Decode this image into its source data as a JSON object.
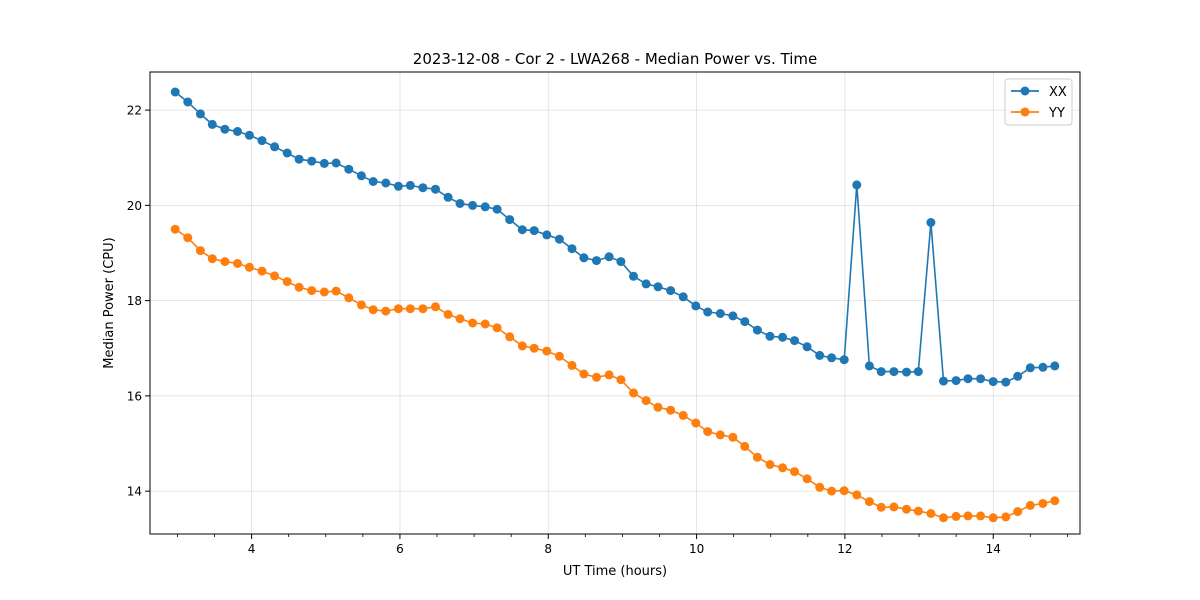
{
  "chart_data": {
    "type": "line",
    "title": "2023-12-08 - Cor 2 - LWA268 - Median Power vs. Time",
    "xlabel": "UT Time (hours)",
    "ylabel": "Median Power (CPU)",
    "xlim": [
      2.63,
      15.17
    ],
    "ylim": [
      13.1,
      22.8
    ],
    "xticks": [
      4,
      6,
      8,
      10,
      12,
      14
    ],
    "yticks": [
      14,
      16,
      18,
      20,
      22
    ],
    "grid": true,
    "legend_position": "top-right",
    "x": [
      2.97,
      3.14,
      3.31,
      3.47,
      3.64,
      3.81,
      3.97,
      4.14,
      4.31,
      4.48,
      4.64,
      4.81,
      4.98,
      5.14,
      5.31,
      5.48,
      5.64,
      5.81,
      5.98,
      6.14,
      6.31,
      6.48,
      6.65,
      6.81,
      6.98,
      7.15,
      7.31,
      7.48,
      7.65,
      7.81,
      7.98,
      8.15,
      8.32,
      8.48,
      8.65,
      8.82,
      8.98,
      9.15,
      9.32,
      9.48,
      9.65,
      9.82,
      9.99,
      10.15,
      10.32,
      10.49,
      10.65,
      10.82,
      10.99,
      11.16,
      11.32,
      11.49,
      11.66,
      11.82,
      11.99,
      12.16,
      12.33,
      12.49,
      12.66,
      12.83,
      12.99,
      13.16,
      13.33,
      13.5,
      13.66,
      13.83,
      14.0,
      14.17,
      14.33,
      14.5,
      14.67,
      14.83
    ],
    "series": [
      {
        "name": "XX",
        "color": "#1f77b4",
        "values": [
          22.38,
          22.17,
          21.92,
          21.7,
          21.6,
          21.55,
          21.47,
          21.36,
          21.23,
          21.1,
          20.97,
          20.93,
          20.88,
          20.89,
          20.76,
          20.62,
          20.5,
          20.47,
          20.4,
          20.42,
          20.37,
          20.34,
          20.17,
          20.04,
          20.0,
          19.97,
          19.92,
          19.7,
          19.49,
          19.47,
          19.38,
          19.29,
          19.09,
          18.9,
          18.84,
          18.92,
          18.82,
          18.51,
          18.35,
          18.29,
          18.21,
          18.08,
          17.89,
          17.76,
          17.73,
          17.68,
          17.56,
          17.38,
          17.25,
          17.23,
          17.16,
          17.03,
          16.85,
          16.8,
          16.76,
          20.43,
          16.63,
          16.51,
          16.51,
          16.5,
          16.51,
          19.64,
          16.31,
          16.32,
          16.36,
          16.36,
          16.3,
          16.29,
          16.41,
          16.59,
          16.6,
          16.63
        ]
      },
      {
        "name": "YY",
        "color": "#ff7f0e",
        "values": [
          19.5,
          19.32,
          19.05,
          18.88,
          18.82,
          18.78,
          18.7,
          18.62,
          18.52,
          18.4,
          18.28,
          18.21,
          18.18,
          18.2,
          18.06,
          17.91,
          17.81,
          17.78,
          17.83,
          17.83,
          17.83,
          17.87,
          17.71,
          17.62,
          17.53,
          17.51,
          17.43,
          17.24,
          17.05,
          17.0,
          16.94,
          16.83,
          16.64,
          16.46,
          16.39,
          16.44,
          16.34,
          16.06,
          15.9,
          15.76,
          15.7,
          15.59,
          15.43,
          15.25,
          15.18,
          15.13,
          14.94,
          14.71,
          14.56,
          14.49,
          14.41,
          14.26,
          14.08,
          14.0,
          14.01,
          13.92,
          13.78,
          13.66,
          13.67,
          13.62,
          13.58,
          13.53,
          13.44,
          13.47,
          13.48,
          13.48,
          13.44,
          13.46,
          13.57,
          13.7,
          13.74,
          13.8
        ]
      }
    ]
  }
}
